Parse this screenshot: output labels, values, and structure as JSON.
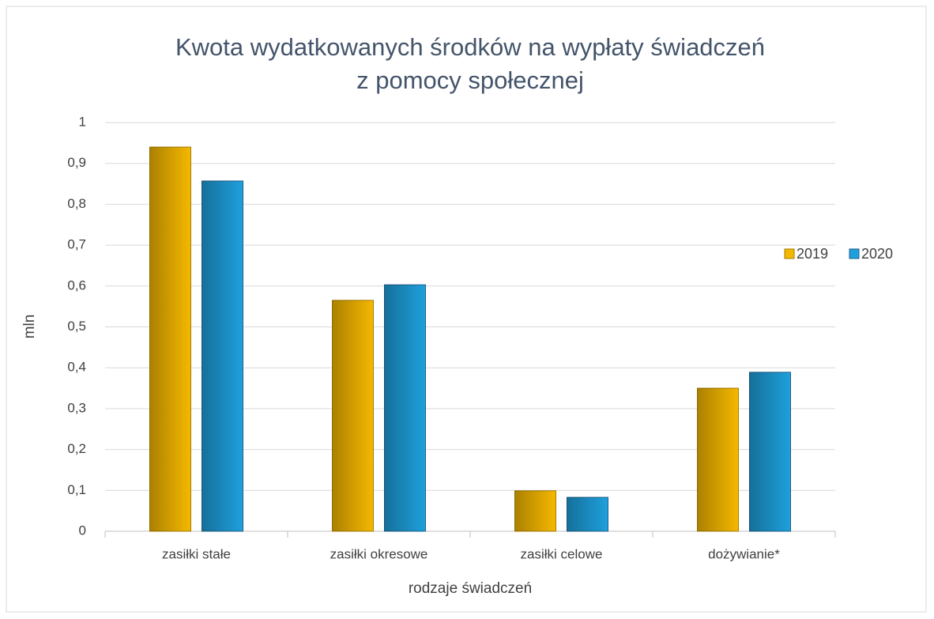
{
  "chart_data": {
    "type": "bar",
    "title": [
      "Kwota wydatkowanych środków na wypłaty świadczeń",
      "z pomocy społecznej"
    ],
    "x_label": "rodzaje świadczeń",
    "y_label": "mln",
    "categories": [
      "zasiłki stałe",
      "zasiłki okresowe",
      "zasiłki celowe",
      "dożywianie*"
    ],
    "series": [
      {
        "name": "2019",
        "color": "#f5b800",
        "values": [
          0.94,
          0.565,
          0.099,
          0.35
        ]
      },
      {
        "name": "2020",
        "color": "#1ea0dc",
        "values": [
          0.857,
          0.603,
          0.083,
          0.389
        ]
      }
    ],
    "ylim": [
      0,
      1
    ],
    "yticks": [
      0,
      {
        "value": 0.1,
        "label": "0,1"
      },
      {
        "value": 0.2,
        "label": "0,2"
      },
      {
        "value": 0.3,
        "label": "0,3"
      },
      {
        "value": 0.4,
        "label": "0,4"
      },
      {
        "value": 0.5,
        "label": "0,5"
      },
      {
        "value": 0.6,
        "label": "0,6"
      },
      {
        "value": 0.7,
        "label": "0,7"
      },
      {
        "value": 0.8,
        "label": "0,8"
      },
      {
        "value": 0.9,
        "label": "0,9"
      },
      1
    ],
    "grid": true,
    "legend": "right"
  }
}
